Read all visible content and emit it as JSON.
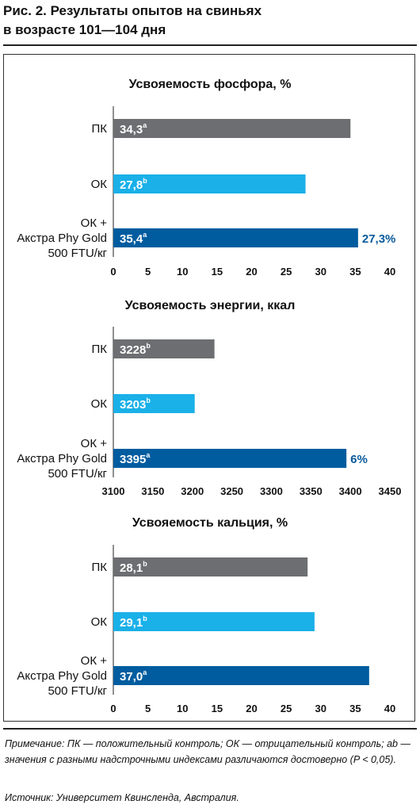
{
  "figure": {
    "title_line1": "Рис. 2. Результаты опытов на свиньях",
    "title_line2": "в возрасте 101—104 дня",
    "note": "Примечание: ПК — положительный контроль; ОК — отрицательный контроль; ab — значения с разными надстрочными индексами различаются достоверно (P < 0,05).",
    "source": "Источник: Университет Квинсленда, Австралия."
  },
  "colors": {
    "pk": "#6d6e71",
    "ok": "#1ab0e8",
    "axtra": "#005c9f",
    "annotation": "#0a5a9c"
  },
  "chart_data": [
    {
      "type": "bar",
      "orientation": "horizontal",
      "title": "Усвояемость фосфора, %",
      "categories": [
        [
          "ПК"
        ],
        [
          "ОК"
        ],
        [
          "ОК +",
          "Акстра Phy Gold",
          "500 FTU/кг"
        ]
      ],
      "values": [
        34.3,
        27.8,
        35.4
      ],
      "value_labels": [
        "34,3",
        "27,8",
        "35,4"
      ],
      "superscripts": [
        "a",
        "b",
        "a"
      ],
      "annotation": "27,3%",
      "xlim": [
        0,
        40
      ],
      "ticks": [
        0,
        5,
        10,
        15,
        20,
        25,
        30,
        35,
        40
      ],
      "xlabel": "",
      "ylabel": ""
    },
    {
      "type": "bar",
      "orientation": "horizontal",
      "title": "Усвояемость энергии, ккал",
      "categories": [
        [
          "ПК"
        ],
        [
          "ОК"
        ],
        [
          "ОК +",
          "Акстра Phy Gold",
          "500 FTU/кг"
        ]
      ],
      "values": [
        3228,
        3203,
        3395
      ],
      "value_labels": [
        "3228",
        "3203",
        "3395"
      ],
      "superscripts": [
        "b",
        "b",
        "a"
      ],
      "annotation": "6%",
      "xlim": [
        3100,
        3450
      ],
      "ticks": [
        3100,
        3150,
        3200,
        3250,
        3300,
        3350,
        3400,
        3450
      ],
      "xlabel": "",
      "ylabel": ""
    },
    {
      "type": "bar",
      "orientation": "horizontal",
      "title": "Усвояемость кальция, %",
      "categories": [
        [
          "ПК"
        ],
        [
          "ОК"
        ],
        [
          "ОК +",
          "Акстра Phy Gold",
          "500 FTU/кг"
        ]
      ],
      "values": [
        28.1,
        29.1,
        37.0
      ],
      "value_labels": [
        "28,1",
        "29,1",
        "37,0"
      ],
      "superscripts": [
        "b",
        "b",
        "a"
      ],
      "annotation": "",
      "xlim": [
        0,
        40
      ],
      "ticks": [
        0,
        5,
        10,
        15,
        20,
        25,
        30,
        35,
        40
      ],
      "xlabel": "",
      "ylabel": ""
    }
  ]
}
